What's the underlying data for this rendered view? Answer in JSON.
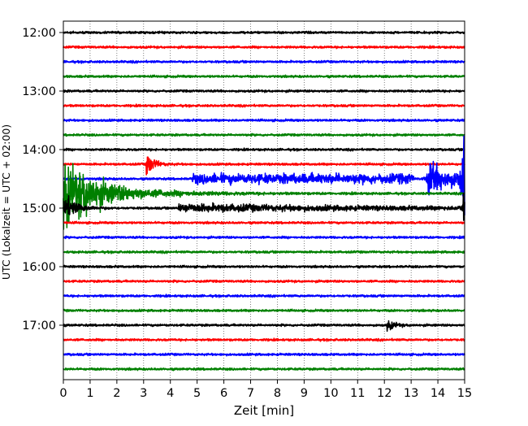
{
  "chart_data": {
    "type": "line",
    "title": "",
    "xlabel": "Zeit  [min]",
    "ylabel": "UTC (Lokalzeit = UTC + 02:00)",
    "xlim": [
      0,
      15
    ],
    "x_ticks": [
      "0",
      "1",
      "2",
      "3",
      "4",
      "5",
      "6",
      "7",
      "8",
      "9",
      "10",
      "11",
      "12",
      "13",
      "14",
      "15"
    ],
    "y_ticks": [
      "12:00",
      "13:00",
      "14:00",
      "15:00",
      "16:00",
      "17:00"
    ],
    "grid": "vertical dotted",
    "trace_interval_min": 15,
    "colors": [
      "#000000",
      "#ff0000",
      "#0000ff",
      "#008000"
    ],
    "traces": [
      {
        "start": "12:00",
        "color": "#000000"
      },
      {
        "start": "12:15",
        "color": "#ff0000"
      },
      {
        "start": "12:30",
        "color": "#0000ff"
      },
      {
        "start": "12:45",
        "color": "#008000"
      },
      {
        "start": "13:00",
        "color": "#000000"
      },
      {
        "start": "13:15",
        "color": "#ff0000"
      },
      {
        "start": "13:30",
        "color": "#0000ff"
      },
      {
        "start": "13:45",
        "color": "#008000"
      },
      {
        "start": "14:00",
        "color": "#000000"
      },
      {
        "start": "14:15",
        "color": "#ff0000",
        "events": [
          {
            "t": 3.1,
            "amp": 14,
            "decay": 0.25
          }
        ]
      },
      {
        "start": "14:30",
        "color": "#0000ff",
        "events": [
          {
            "t": 4.8,
            "amp": 5,
            "decay": 9,
            "beads": 8.3
          },
          {
            "t": 13.6,
            "amp": 20,
            "decay": 1.0
          },
          {
            "t": 14.9,
            "amp": 72,
            "decay": 0.2
          }
        ]
      },
      {
        "start": "14:45",
        "color": "#008000",
        "events": [
          {
            "t": 0.0,
            "amp": 42,
            "decay": 0.8
          },
          {
            "t": 0.6,
            "amp": 10,
            "decay": 2.2
          }
        ]
      },
      {
        "start": "15:00",
        "color": "#000000",
        "events": [
          {
            "t": 0.0,
            "amp": 16,
            "decay": 0.4
          },
          {
            "t": 4.3,
            "amp": 4,
            "decay": 8
          },
          {
            "t": 14.95,
            "amp": 18,
            "decay": 0.1
          }
        ]
      },
      {
        "start": "15:15",
        "color": "#ff0000"
      },
      {
        "start": "15:30",
        "color": "#0000ff"
      },
      {
        "start": "15:45",
        "color": "#008000"
      },
      {
        "start": "16:00",
        "color": "#000000"
      },
      {
        "start": "16:15",
        "color": "#ff0000"
      },
      {
        "start": "16:30",
        "color": "#0000ff"
      },
      {
        "start": "16:45",
        "color": "#008000"
      },
      {
        "start": "17:00",
        "color": "#000000",
        "events": [
          {
            "t": 12.1,
            "amp": 6,
            "decay": 0.25
          }
        ]
      },
      {
        "start": "17:15",
        "color": "#ff0000"
      },
      {
        "start": "17:30",
        "color": "#0000ff"
      },
      {
        "start": "17:45",
        "color": "#008000"
      }
    ]
  }
}
